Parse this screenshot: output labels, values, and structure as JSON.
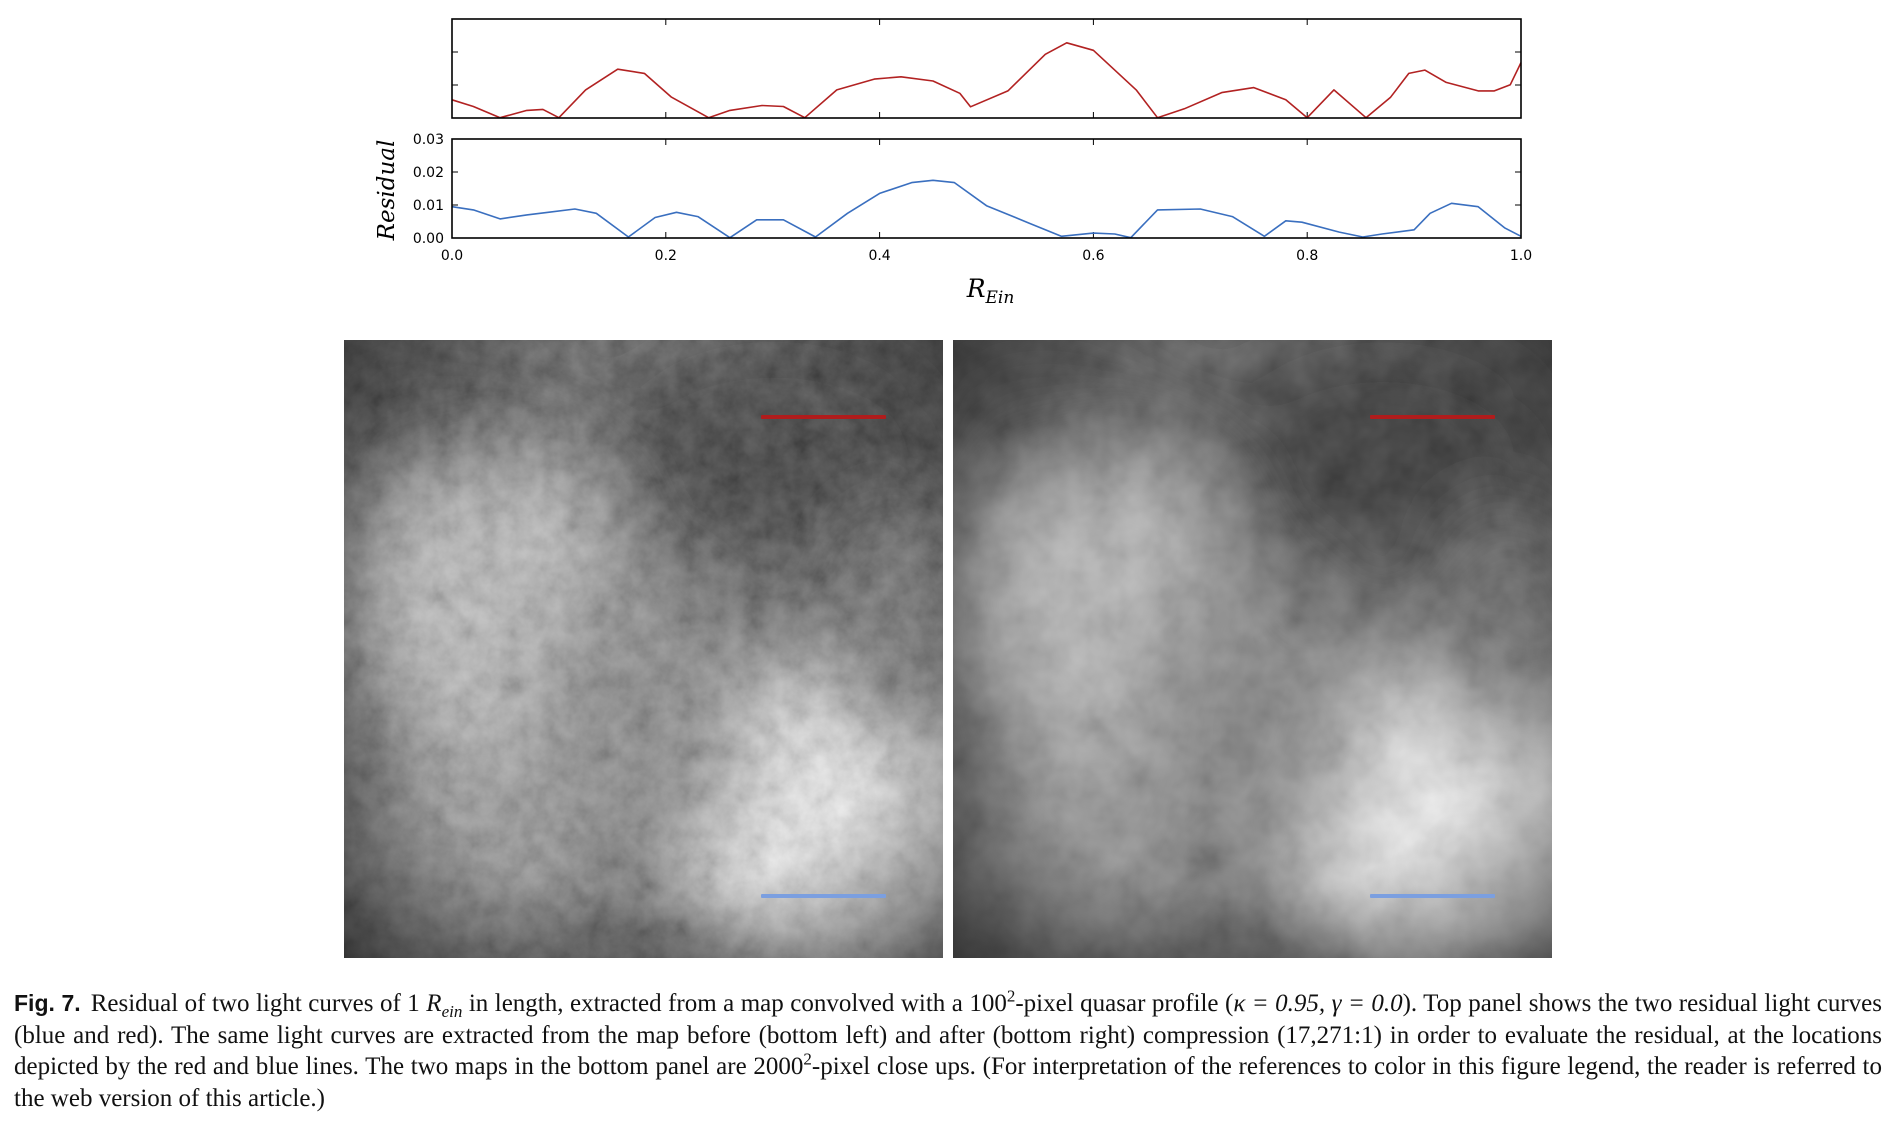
{
  "chart_data": [
    {
      "type": "line",
      "panel": "top",
      "xlim": [
        0.0,
        1.0
      ],
      "ylim": [
        0.0,
        0.03
      ],
      "y_scale": "inherited",
      "series": [
        {
          "color": "#b22222",
          "x": [
            0.0,
            0.02,
            0.045,
            0.07,
            0.085,
            0.1,
            0.125,
            0.155,
            0.18,
            0.205,
            0.24,
            0.26,
            0.29,
            0.31,
            0.33,
            0.36,
            0.395,
            0.42,
            0.45,
            0.475,
            0.485,
            0.52,
            0.555,
            0.575,
            0.6,
            0.64,
            0.66,
            0.685,
            0.72,
            0.75,
            0.78,
            0.8,
            0.825,
            0.855,
            0.878,
            0.895,
            0.91,
            0.93,
            0.96,
            0.975,
            0.99,
            1.0
          ],
          "y": [
            0.0055,
            0.0035,
            0.0001,
            0.0023,
            0.0026,
            0.0001,
            0.0085,
            0.0148,
            0.0135,
            0.0064,
            0.0001,
            0.0023,
            0.0038,
            0.0035,
            0.0001,
            0.0085,
            0.0118,
            0.0125,
            0.0112,
            0.0075,
            0.0034,
            0.0082,
            0.0193,
            0.0228,
            0.0205,
            0.0085,
            0.0001,
            0.0028,
            0.0077,
            0.0092,
            0.0055,
            0.0001,
            0.0085,
            0.0001,
            0.0063,
            0.0135,
            0.0145,
            0.0108,
            0.0082,
            0.0082,
            0.0101,
            0.0168
          ]
        }
      ]
    },
    {
      "type": "line",
      "panel": "bottom",
      "ylabel": "Residual",
      "xlabel": "R_Ein",
      "xlim": [
        0.0,
        1.0
      ],
      "ylim": [
        0.0,
        0.03
      ],
      "xticks": [
        "0.0",
        "0.2",
        "0.4",
        "0.6",
        "0.8",
        "1.0"
      ],
      "yticks": [
        "0.00",
        "0.01",
        "0.02",
        "0.03"
      ],
      "series": [
        {
          "color": "#3a6fbf",
          "x": [
            0.0,
            0.02,
            0.045,
            0.07,
            0.09,
            0.115,
            0.135,
            0.165,
            0.19,
            0.21,
            0.23,
            0.26,
            0.285,
            0.31,
            0.34,
            0.37,
            0.4,
            0.43,
            0.45,
            0.47,
            0.5,
            0.54,
            0.57,
            0.6,
            0.62,
            0.635,
            0.66,
            0.7,
            0.73,
            0.76,
            0.78,
            0.795,
            0.83,
            0.852,
            0.87,
            0.9,
            0.915,
            0.935,
            0.96,
            0.985,
            1.0
          ],
          "y": [
            0.0095,
            0.0085,
            0.0058,
            0.007,
            0.0078,
            0.0088,
            0.0075,
            0.0003,
            0.0062,
            0.0078,
            0.0065,
            0.0001,
            0.0055,
            0.0055,
            0.0003,
            0.0075,
            0.0135,
            0.0168,
            0.0175,
            0.0168,
            0.0098,
            0.0045,
            0.0005,
            0.0015,
            0.0012,
            0.0001,
            0.0085,
            0.0088,
            0.0065,
            0.0005,
            0.0052,
            0.0048,
            0.0018,
            0.0003,
            0.0012,
            0.0025,
            0.0075,
            0.0105,
            0.0095,
            0.003,
            0.0005
          ]
        }
      ]
    }
  ],
  "maps": {
    "marker_colors": {
      "red": "#b01c1c",
      "blue": "#7b9fe0"
    }
  },
  "caption": {
    "label": "Fig. 7.",
    "text_1": "Residual of two light curves of 1 ",
    "rein_main": "R",
    "rein_sub": "ein",
    "text_2": " in length, extracted from a map convolved with a 100",
    "exp_1": "2",
    "text_3": "-pixel quasar profile (",
    "kappa_expr": "κ = 0.95, γ = 0.0",
    "text_4": "). Top panel shows the two residual light curves (blue and red). The same light curves are extracted from the map before (bottom left) and after (bottom right) compression (17,271:1) in order to evaluate the residual, at the locations depicted by the red and blue lines. The two maps in the bottom panel are 2000",
    "exp_2": "2",
    "text_5": "-pixel close ups. (For interpretation of the references to color in this figure legend, the reader is referred to the web version of this article.)"
  }
}
